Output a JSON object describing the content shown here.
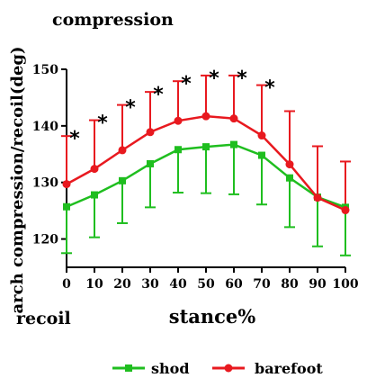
{
  "chart_data": {
    "type": "line",
    "xlabel": "stance%",
    "ylabel": "arch compression/recoil(deg)",
    "annotations": {
      "top": "compression",
      "bottom": "recoil"
    },
    "xlim": [
      0,
      100
    ],
    "ylim": [
      115,
      150
    ],
    "x_ticks": [
      "0",
      "10",
      "20",
      "30",
      "40",
      "50",
      "60",
      "70",
      "80",
      "90",
      "100"
    ],
    "y_ticks": [
      "120",
      "130",
      "140",
      "150"
    ],
    "x": [
      0,
      10,
      20,
      30,
      40,
      50,
      60,
      70,
      80,
      90,
      100
    ],
    "series": [
      {
        "name": "shod",
        "color": "#1fbe1f",
        "marker": "square",
        "error_direction": "down",
        "values": [
          125.7,
          127.8,
          130.3,
          133.3,
          135.8,
          136.3,
          136.7,
          134.8,
          130.8,
          127.4,
          125.6
        ],
        "error": [
          8.2,
          7.5,
          7.5,
          7.7,
          7.6,
          8.2,
          8.8,
          8.7,
          8.7,
          8.7,
          8.5
        ]
      },
      {
        "name": "barefoot",
        "color": "#e8191f",
        "marker": "circle",
        "error_direction": "up",
        "values": [
          129.7,
          132.4,
          135.7,
          138.9,
          140.9,
          141.7,
          141.3,
          138.3,
          133.2,
          127.3,
          125.1
        ],
        "error": [
          8.5,
          8.6,
          8.0,
          7.1,
          7.0,
          7.2,
          7.6,
          8.9,
          9.4,
          9.1,
          8.6
        ]
      }
    ],
    "significance": {
      "symbol": "*",
      "x": [
        0,
        10,
        20,
        30,
        40,
        50,
        60,
        70
      ]
    },
    "grid": false,
    "legend_position": "bottom"
  }
}
